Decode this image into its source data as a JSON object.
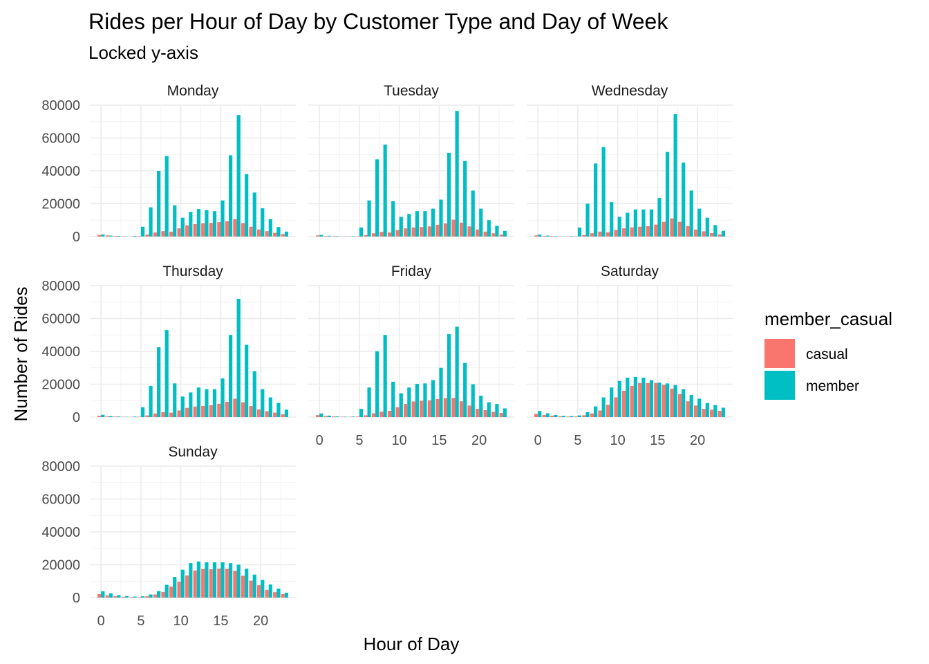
{
  "chart_data": {
    "type": "bar",
    "title": "Rides per Hour of Day by Customer Type and Day of Week",
    "subtitle": "Locked y-axis",
    "xlabel": "Hour of Day",
    "ylabel": "Number of Rides",
    "ylim": [
      0,
      80000
    ],
    "y_ticks": [
      "0",
      "20000",
      "40000",
      "60000",
      "80000"
    ],
    "y_tick_values": [
      0,
      20000,
      40000,
      60000,
      80000
    ],
    "x_ticks": [
      "0",
      "5",
      "10",
      "15",
      "20"
    ],
    "x_tick_values": [
      0,
      5,
      10,
      15,
      20
    ],
    "grid": true,
    "legend": {
      "title": "member_casual",
      "placement": "right",
      "entries": [
        {
          "name": "casual",
          "color": "#F8766D"
        },
        {
          "name": "member",
          "color": "#00BFC4"
        }
      ]
    },
    "hours": [
      0,
      1,
      2,
      3,
      4,
      5,
      6,
      7,
      8,
      9,
      10,
      11,
      12,
      13,
      14,
      15,
      16,
      17,
      18,
      19,
      20,
      21,
      22,
      23
    ],
    "panels": [
      {
        "day": "Monday",
        "casual": [
          1000,
          700,
          400,
          200,
          150,
          300,
          1200,
          2500,
          3300,
          3000,
          5000,
          6800,
          7600,
          8100,
          8300,
          8800,
          9300,
          10600,
          8200,
          6000,
          4300,
          3300,
          2300,
          1500
        ],
        "member": [
          1200,
          600,
          400,
          200,
          400,
          6000,
          17800,
          40000,
          49000,
          19000,
          11500,
          15000,
          16800,
          16000,
          15500,
          22000,
          49500,
          74000,
          38000,
          26800,
          17200,
          10600,
          5800,
          3000
        ]
      },
      {
        "day": "Tuesday",
        "casual": [
          700,
          400,
          300,
          150,
          100,
          250,
          900,
          2000,
          2800,
          2500,
          4000,
          5000,
          5500,
          5800,
          6200,
          7200,
          8000,
          10300,
          8500,
          6200,
          4300,
          3000,
          2000,
          1200
        ],
        "member": [
          1000,
          500,
          300,
          150,
          300,
          5500,
          22000,
          47000,
          56000,
          21500,
          12000,
          13800,
          15500,
          15500,
          17000,
          22500,
          51000,
          76500,
          46000,
          28000,
          17000,
          10000,
          6500,
          3500
        ]
      },
      {
        "day": "Wednesday",
        "casual": [
          700,
          400,
          300,
          150,
          100,
          250,
          900,
          2000,
          3000,
          2600,
          4000,
          5000,
          5600,
          6000,
          6300,
          7300,
          9000,
          11000,
          9000,
          6400,
          4300,
          3200,
          2100,
          1300
        ],
        "member": [
          1200,
          600,
          300,
          150,
          300,
          5500,
          20000,
          44500,
          54500,
          21000,
          12000,
          14500,
          16500,
          16500,
          16500,
          23500,
          51500,
          74500,
          45000,
          28000,
          17000,
          11500,
          7000,
          3500
        ]
      },
      {
        "day": "Thursday",
        "casual": [
          800,
          400,
          300,
          150,
          100,
          250,
          1000,
          2200,
          3000,
          2700,
          4000,
          5600,
          6400,
          6800,
          7300,
          8100,
          9300,
          11200,
          9000,
          6700,
          4700,
          3600,
          2700,
          1700
        ],
        "member": [
          1400,
          600,
          300,
          150,
          300,
          6000,
          19000,
          42500,
          53000,
          20500,
          12500,
          15000,
          18000,
          17000,
          17000,
          23500,
          50000,
          72000,
          44000,
          28000,
          17000,
          12000,
          8600,
          4500
        ]
      },
      {
        "day": "Friday",
        "casual": [
          1200,
          600,
          400,
          200,
          150,
          300,
          1100,
          2300,
          3300,
          3800,
          6000,
          8000,
          9500,
          10000,
          10200,
          11000,
          11600,
          11700,
          9600,
          7000,
          5000,
          4200,
          3200,
          2500
        ],
        "member": [
          2200,
          900,
          400,
          200,
          300,
          5000,
          18000,
          40000,
          50000,
          21500,
          14500,
          18000,
          20200,
          20500,
          22500,
          30000,
          50500,
          55000,
          33000,
          20000,
          13000,
          9000,
          8000,
          5300
        ]
      },
      {
        "day": "Saturday",
        "casual": [
          2000,
          1300,
          800,
          500,
          300,
          400,
          1100,
          2200,
          4000,
          7500,
          12000,
          16000,
          19000,
          20700,
          20700,
          20800,
          19600,
          17300,
          14000,
          9600,
          7000,
          5000,
          4500,
          3800
        ],
        "member": [
          3700,
          2300,
          1300,
          800,
          600,
          1000,
          3000,
          6500,
          12000,
          18000,
          22000,
          24000,
          24500,
          24000,
          22500,
          21000,
          20500,
          19500,
          17000,
          13500,
          11200,
          8600,
          7300,
          5700
        ]
      },
      {
        "day": "Sunday",
        "casual": [
          2100,
          1300,
          800,
          500,
          300,
          300,
          800,
          1900,
          3400,
          6700,
          9700,
          13500,
          16500,
          17500,
          17300,
          17700,
          17600,
          16300,
          13300,
          10300,
          7500,
          4700,
          3300,
          2200
        ],
        "member": [
          3900,
          2600,
          1500,
          900,
          600,
          800,
          1900,
          4000,
          7800,
          12600,
          17000,
          21000,
          22000,
          21500,
          21500,
          21500,
          21000,
          20000,
          17600,
          14000,
          10800,
          8000,
          5500,
          3000
        ]
      }
    ]
  }
}
